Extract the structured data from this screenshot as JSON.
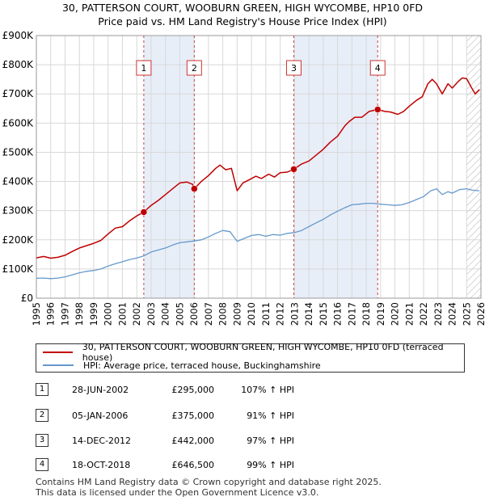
{
  "title_line1": "30, PATTERSON COURT, WOOBURN GREEN, HIGH WYCOMBE, HP10 0FD",
  "title_line2": "Price paid vs. HM Land Registry's House Price Index (HPI)",
  "colors": {
    "property": "#c00000",
    "hpi": "#6699cc",
    "shade": "#e8eef8",
    "marker_line": "#cc4444",
    "grid": "#d8d8d8"
  },
  "chart_data": {
    "type": "line",
    "x_range": [
      1995,
      2026
    ],
    "y_range": [
      0,
      900000
    ],
    "y_ticks": [
      {
        "value": 0,
        "label": "£0"
      },
      {
        "value": 100000,
        "label": "£100K"
      },
      {
        "value": 200000,
        "label": "£200K"
      },
      {
        "value": 300000,
        "label": "£300K"
      },
      {
        "value": 400000,
        "label": "£400K"
      },
      {
        "value": 500000,
        "label": "£500K"
      },
      {
        "value": 600000,
        "label": "£600K"
      },
      {
        "value": 700000,
        "label": "£700K"
      },
      {
        "value": 800000,
        "label": "£800K"
      },
      {
        "value": 900000,
        "label": "£900K"
      }
    ],
    "x_ticks": [
      "1995",
      "1996",
      "1997",
      "1998",
      "1999",
      "2000",
      "2001",
      "2002",
      "2003",
      "2004",
      "2005",
      "2006",
      "2007",
      "2008",
      "2009",
      "2010",
      "2011",
      "2012",
      "2013",
      "2014",
      "2015",
      "2016",
      "2017",
      "2018",
      "2019",
      "2020",
      "2021",
      "2022",
      "2023",
      "2024",
      "2025",
      "2026"
    ],
    "series": [
      {
        "name": "30, PATTERSON COURT, WOOBURN GREEN, HIGH WYCOMBE, HP10 0FD (terraced house)",
        "points": [
          [
            1995.0,
            138000
          ],
          [
            1995.5,
            143000
          ],
          [
            1996.0,
            137000
          ],
          [
            1996.5,
            140000
          ],
          [
            1997.0,
            147000
          ],
          [
            1997.5,
            160000
          ],
          [
            1998.0,
            172000
          ],
          [
            1998.5,
            180000
          ],
          [
            1999.0,
            188000
          ],
          [
            1999.5,
            198000
          ],
          [
            2000.0,
            220000
          ],
          [
            2000.5,
            240000
          ],
          [
            2001.0,
            245000
          ],
          [
            2001.5,
            265000
          ],
          [
            2002.0,
            282000
          ],
          [
            2002.49,
            295000
          ],
          [
            2003.0,
            318000
          ],
          [
            2003.5,
            335000
          ],
          [
            2004.0,
            355000
          ],
          [
            2004.5,
            375000
          ],
          [
            2005.0,
            395000
          ],
          [
            2005.5,
            398000
          ],
          [
            2005.9,
            390000
          ],
          [
            2006.01,
            375000
          ],
          [
            2006.5,
            400000
          ],
          [
            2007.0,
            420000
          ],
          [
            2007.5,
            445000
          ],
          [
            2007.8,
            456000
          ],
          [
            2008.2,
            440000
          ],
          [
            2008.6,
            445000
          ],
          [
            2009.0,
            368000
          ],
          [
            2009.4,
            395000
          ],
          [
            2009.8,
            405000
          ],
          [
            2010.3,
            418000
          ],
          [
            2010.7,
            410000
          ],
          [
            2011.2,
            425000
          ],
          [
            2011.6,
            415000
          ],
          [
            2012.0,
            430000
          ],
          [
            2012.5,
            432000
          ],
          [
            2012.95,
            442000
          ],
          [
            2013.5,
            460000
          ],
          [
            2014.0,
            470000
          ],
          [
            2014.5,
            490000
          ],
          [
            2015.0,
            510000
          ],
          [
            2015.5,
            535000
          ],
          [
            2016.0,
            555000
          ],
          [
            2016.5,
            590000
          ],
          [
            2016.8,
            605000
          ],
          [
            2017.2,
            620000
          ],
          [
            2017.7,
            620000
          ],
          [
            2018.2,
            640000
          ],
          [
            2018.8,
            646500
          ],
          [
            2019.3,
            640000
          ],
          [
            2019.7,
            638000
          ],
          [
            2020.2,
            630000
          ],
          [
            2020.6,
            640000
          ],
          [
            2021.0,
            658000
          ],
          [
            2021.5,
            678000
          ],
          [
            2021.9,
            690000
          ],
          [
            2022.3,
            735000
          ],
          [
            2022.6,
            750000
          ],
          [
            2022.9,
            735000
          ],
          [
            2023.3,
            700000
          ],
          [
            2023.7,
            735000
          ],
          [
            2024.0,
            720000
          ],
          [
            2024.4,
            742000
          ],
          [
            2024.7,
            755000
          ],
          [
            2025.0,
            752000
          ],
          [
            2025.3,
            725000
          ],
          [
            2025.6,
            700000
          ],
          [
            2025.9,
            715000
          ]
        ]
      },
      {
        "name": "HPI: Average price, terraced house, Buckinghamshire",
        "points": [
          [
            1995.0,
            68000
          ],
          [
            1995.5,
            69000
          ],
          [
            1996.0,
            67000
          ],
          [
            1996.5,
            69000
          ],
          [
            1997.0,
            73000
          ],
          [
            1997.5,
            80000
          ],
          [
            1998.0,
            87000
          ],
          [
            1998.5,
            92000
          ],
          [
            1999.0,
            95000
          ],
          [
            1999.5,
            100000
          ],
          [
            2000.0,
            110000
          ],
          [
            2000.5,
            118000
          ],
          [
            2001.0,
            125000
          ],
          [
            2001.5,
            132000
          ],
          [
            2002.0,
            138000
          ],
          [
            2002.5,
            145000
          ],
          [
            2003.0,
            158000
          ],
          [
            2003.5,
            165000
          ],
          [
            2004.0,
            172000
          ],
          [
            2004.5,
            182000
          ],
          [
            2005.0,
            190000
          ],
          [
            2005.5,
            193000
          ],
          [
            2006.0,
            196000
          ],
          [
            2006.5,
            200000
          ],
          [
            2007.0,
            210000
          ],
          [
            2007.5,
            222000
          ],
          [
            2008.0,
            232000
          ],
          [
            2008.5,
            228000
          ],
          [
            2009.0,
            195000
          ],
          [
            2009.5,
            205000
          ],
          [
            2010.0,
            215000
          ],
          [
            2010.5,
            218000
          ],
          [
            2011.0,
            212000
          ],
          [
            2011.5,
            218000
          ],
          [
            2012.0,
            216000
          ],
          [
            2012.5,
            222000
          ],
          [
            2013.0,
            225000
          ],
          [
            2013.5,
            232000
          ],
          [
            2014.0,
            245000
          ],
          [
            2014.5,
            258000
          ],
          [
            2015.0,
            270000
          ],
          [
            2015.5,
            285000
          ],
          [
            2016.0,
            298000
          ],
          [
            2016.5,
            310000
          ],
          [
            2017.0,
            320000
          ],
          [
            2017.5,
            322000
          ],
          [
            2018.0,
            325000
          ],
          [
            2018.5,
            325000
          ],
          [
            2019.0,
            322000
          ],
          [
            2019.5,
            320000
          ],
          [
            2020.0,
            318000
          ],
          [
            2020.5,
            320000
          ],
          [
            2021.0,
            328000
          ],
          [
            2021.5,
            338000
          ],
          [
            2022.0,
            348000
          ],
          [
            2022.5,
            368000
          ],
          [
            2022.9,
            375000
          ],
          [
            2023.3,
            355000
          ],
          [
            2023.7,
            365000
          ],
          [
            2024.0,
            360000
          ],
          [
            2024.5,
            372000
          ],
          [
            2025.0,
            375000
          ],
          [
            2025.4,
            370000
          ],
          [
            2025.9,
            368000
          ]
        ]
      }
    ],
    "sales": [
      {
        "label": "1",
        "x": 2002.49,
        "price": 295000,
        "date": "28-JUN-2002",
        "price_text": "£295,000",
        "hpi_text": "107% ↑ HPI"
      },
      {
        "label": "2",
        "x": 2006.01,
        "price": 375000,
        "date": "05-JAN-2006",
        "price_text": "£375,000",
        "hpi_text": "91% ↑ HPI"
      },
      {
        "label": "3",
        "x": 2012.95,
        "price": 442000,
        "date": "14-DEC-2012",
        "price_text": "£442,000",
        "hpi_text": "97% ↑ HPI"
      },
      {
        "label": "4",
        "x": 2018.8,
        "price": 646500,
        "date": "18-OCT-2018",
        "price_text": "£646,500",
        "hpi_text": "99% ↑ HPI"
      }
    ],
    "shaded_ranges": [
      [
        2002.49,
        2006.01
      ],
      [
        2012.95,
        2018.8
      ]
    ],
    "hatched_range": [
      2025.0,
      2026.0
    ],
    "legend": [
      "30, PATTERSON COURT, WOOBURN GREEN, HIGH WYCOMBE, HP10 0FD (terraced house)",
      "HPI: Average price, terraced house, Buckinghamshire"
    ]
  },
  "footer_line1": "Contains HM Land Registry data © Crown copyright and database right 2025.",
  "footer_line2": "This data is licensed under the Open Government Licence v3.0."
}
